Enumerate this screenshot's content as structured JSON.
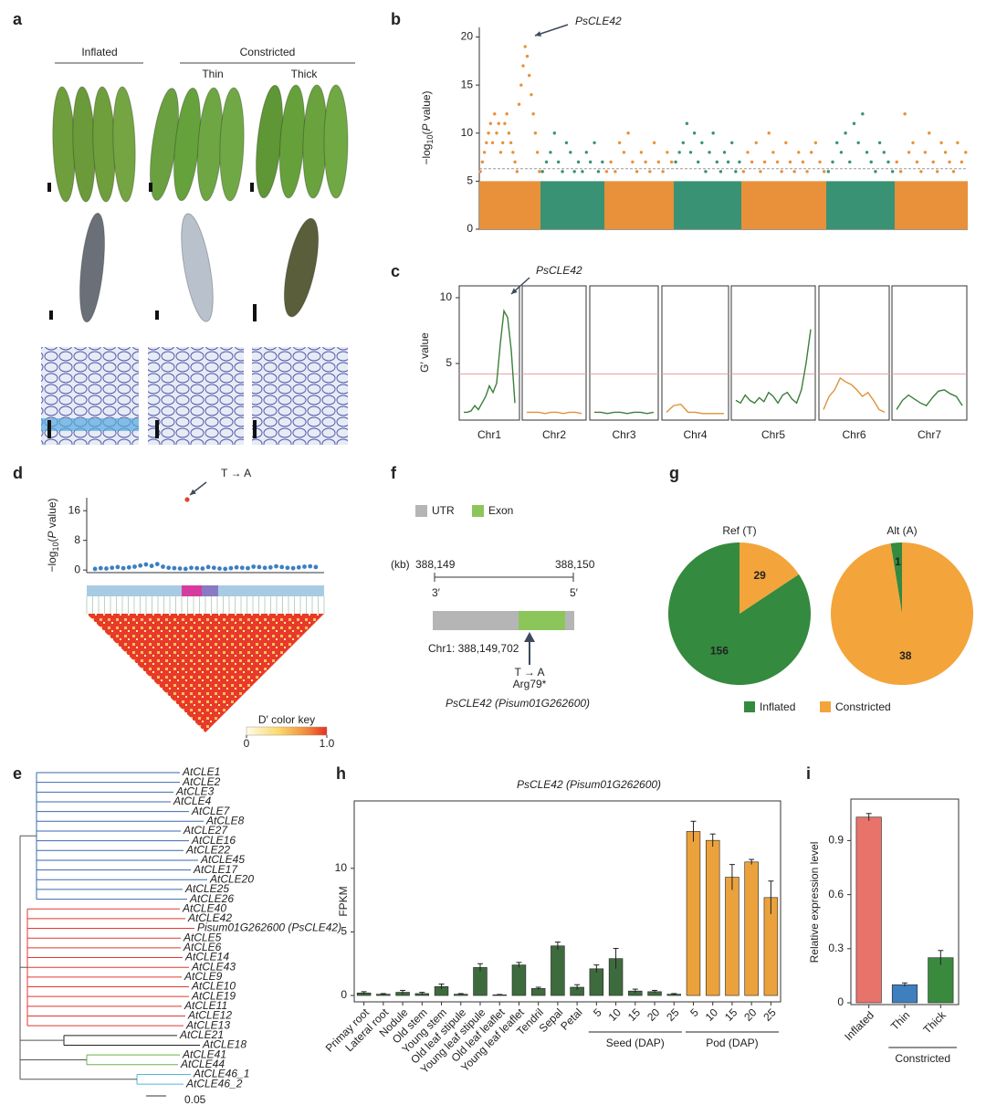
{
  "panel_letters": [
    "a",
    "b",
    "c",
    "d",
    "e",
    "f",
    "g",
    "h",
    "i"
  ],
  "panel_a": {
    "groups": [
      "Inflated",
      "Constricted"
    ],
    "subgroups": [
      "Thin",
      "Thick"
    ]
  },
  "panel_e": {
    "clades": [
      {
        "color": "#3a69b0",
        "leaves": [
          "AtCLE1",
          "AtCLE2",
          "AtCLE3",
          "AtCLE4",
          "AtCLE7",
          "AtCLE8",
          "AtCLE27",
          "AtCLE16",
          "AtCLE22",
          "AtCLE45",
          "AtCLE17",
          "AtCLE20",
          "AtCLE25",
          "AtCLE26"
        ]
      },
      {
        "color": "#e0392f",
        "leaves": [
          "AtCLE40",
          "AtCLE42",
          "Pisum01G262600 (PsCLE42)",
          "AtCLE5",
          "AtCLE6",
          "AtCLE14",
          "AtCLE43",
          "AtCLE9",
          "AtCLE10",
          "AtCLE19",
          "AtCLE11",
          "AtCLE12",
          "AtCLE13"
        ]
      },
      {
        "color": "#222222",
        "leaves": [
          "AtCLE21",
          "AtCLE18"
        ]
      },
      {
        "color": "#6db34a",
        "leaves": [
          "AtCLE41",
          "AtCLE44"
        ]
      },
      {
        "color": "#55b6d8",
        "leaves": [
          "AtCLE46_1",
          "AtCLE46_2"
        ]
      }
    ],
    "scale_label": "0.05"
  },
  "panel_f": {
    "legend": [
      {
        "label": "UTR",
        "color": "#b5b5b5"
      },
      {
        "label": "Exon",
        "color": "#8cc65a"
      }
    ],
    "unit": "(kb)",
    "positions": [
      "388,149",
      "388,150"
    ],
    "ends": [
      "3′",
      "5′"
    ],
    "snp": "Chr1: 388,149,702",
    "change": "T → A",
    "effect": "Arg79*",
    "gene": "PsCLE42 (Pisum01G262600)"
  },
  "chart_data": [
    {
      "type": "scatter",
      "ylabel": [
        "−log",
        "10",
        "(",
        "P",
        " value)"
      ],
      "ylim": [
        0,
        21
      ],
      "yticks": [
        0,
        5,
        10,
        15,
        20
      ],
      "threshold": 6.3,
      "dense_upper": 5,
      "annotation": "PsCLE42",
      "series": [
        {
          "color": "#e8913a",
          "values": [
            6,
            7,
            8,
            9,
            10,
            11,
            9,
            12,
            10,
            11,
            8,
            9,
            11,
            12,
            10,
            9,
            8,
            7,
            6,
            13,
            15,
            17,
            19,
            18,
            16,
            14,
            12,
            10,
            8,
            6
          ]
        },
        {
          "color": "#3a9274",
          "values": [
            6,
            7,
            8,
            10,
            7,
            6,
            9,
            8,
            6,
            7,
            6,
            8,
            7,
            9,
            6,
            7
          ]
        },
        {
          "color": "#e8913a",
          "values": [
            6,
            7,
            6,
            9,
            8,
            10,
            7,
            6,
            8,
            7,
            6,
            9,
            7,
            6,
            8,
            7
          ]
        },
        {
          "color": "#3a9274",
          "values": [
            7,
            8,
            9,
            11,
            8,
            10,
            7,
            9,
            6,
            8,
            10,
            7,
            6,
            8,
            7,
            9,
            6,
            7
          ]
        },
        {
          "color": "#e8913a",
          "values": [
            6,
            8,
            7,
            9,
            6,
            7,
            10,
            8,
            7,
            6,
            9,
            7,
            6,
            8,
            7,
            6,
            8,
            9,
            7,
            6
          ]
        },
        {
          "color": "#3a9274",
          "values": [
            6,
            7,
            9,
            8,
            10,
            7,
            11,
            9,
            12,
            8,
            7,
            6,
            9,
            8,
            7,
            6
          ]
        },
        {
          "color": "#e8913a",
          "values": [
            7,
            6,
            12,
            8,
            9,
            7,
            6,
            8,
            10,
            7,
            6,
            9,
            8,
            7,
            6,
            9,
            7,
            8
          ]
        }
      ]
    },
    {
      "type": "line",
      "ylabel": "G′ value",
      "ylim": [
        0.7,
        10.9
      ],
      "yticks": [
        5,
        10
      ],
      "threshold": 4.2,
      "annotation": "PsCLE42",
      "series": [
        {
          "name": "Chr1",
          "color": "#3b7f3b",
          "values": [
            1.3,
            1.3,
            1.4,
            1.8,
            1.5,
            2.0,
            2.5,
            3.3,
            2.8,
            3.5,
            6.5,
            9.0,
            8.5,
            6.0,
            2.0
          ]
        },
        {
          "name": "Chr2",
          "color": "#e0913a",
          "values": [
            1.3,
            1.3,
            1.3,
            1.2,
            1.3,
            1.3,
            1.2,
            1.3,
            1.3,
            1.2
          ]
        },
        {
          "name": "Chr3",
          "color": "#3b7f3b",
          "values": [
            1.3,
            1.3,
            1.2,
            1.3,
            1.3,
            1.2,
            1.3,
            1.3,
            1.2,
            1.3
          ]
        },
        {
          "name": "Chr4",
          "color": "#e0913a",
          "values": [
            1.3,
            1.8,
            1.9,
            1.3,
            1.3,
            1.2,
            1.2,
            1.2,
            1.2
          ]
        },
        {
          "name": "Chr5",
          "color": "#3b7f3b",
          "values": [
            2.2,
            2.0,
            2.6,
            2.2,
            2.0,
            2.4,
            2.1,
            2.8,
            2.5,
            2.0,
            2.6,
            2.8,
            2.3,
            2.0,
            3.0,
            5.0,
            7.6
          ]
        },
        {
          "name": "Chr6",
          "color": "#e0913a",
          "values": [
            1.5,
            2.5,
            3.0,
            3.9,
            3.6,
            3.4,
            3.0,
            2.5,
            2.8,
            2.2,
            1.5,
            1.3
          ]
        },
        {
          "name": "Chr7",
          "color": "#3b7f3b",
          "values": [
            1.5,
            2.2,
            2.6,
            2.3,
            2.0,
            1.8,
            2.4,
            2.9,
            3.0,
            2.7,
            2.5,
            1.8
          ]
        }
      ]
    },
    {
      "type": "scatter",
      "ylabel": [
        "−log",
        "10",
        "(",
        "P",
        " value)"
      ],
      "ylim": [
        -0.7,
        19.5
      ],
      "yticks": [
        0,
        8,
        16
      ],
      "annotation": "T → A",
      "color": "#3d7fc1",
      "values": [
        0.3,
        0.5,
        0.4,
        0.6,
        0.8,
        0.5,
        0.7,
        0.9,
        1.2,
        1.5,
        1.1,
        1.6,
        0.9,
        0.6,
        0.5,
        0.4,
        0.3,
        0.6,
        0.5,
        0.4,
        0.8,
        0.6,
        0.4,
        0.3,
        0.5,
        0.7,
        0.6,
        0.5,
        0.9,
        0.8,
        0.6,
        0.7,
        1.0,
        0.8,
        0.6,
        0.5,
        0.7,
        0.9,
        1.0,
        0.8
      ],
      "lead": {
        "value": 19,
        "color": "#d94a2b"
      },
      "color_key": {
        "title": "D′ color key",
        "ticks": [
          0,
          {
            "value": 1,
            "label": "1.0"
          }
        ]
      }
    },
    {
      "type": "pie",
      "title": "Ref (T)",
      "categories": [
        "Inflated",
        "Constricted"
      ],
      "values": [
        156,
        29
      ],
      "colors": [
        "#348a3f",
        "#f3a43b"
      ]
    },
    {
      "type": "pie",
      "title": "Alt (A)",
      "categories": [
        "Inflated",
        "Constricted"
      ],
      "values": [
        1,
        38
      ],
      "colors": [
        "#348a3f",
        "#f3a43b"
      ]
    },
    {
      "type": "bar",
      "title": "PsCLE42 (Pisum01G262600)",
      "ylabel": "FPKM",
      "ylim": [
        -0.5,
        15.3
      ],
      "yticks": [
        0,
        5,
        10
      ],
      "categories": [
        "Primay root",
        "Lateral root",
        "Nodule",
        "Old stem",
        "Young stem",
        "Old leaf stipule",
        "Young leaf stipule",
        "Old leaf leaflet",
        "Young leaf leaflet",
        "Tendril",
        "Sepal",
        "Petal",
        "5",
        "10",
        "15",
        "20",
        "25",
        "5",
        "10",
        "15",
        "20",
        "25"
      ],
      "values": [
        0.2,
        0.1,
        0.25,
        0.15,
        0.7,
        0.1,
        2.2,
        0.05,
        2.4,
        0.55,
        3.9,
        0.65,
        2.1,
        2.9,
        0.35,
        0.3,
        0.1,
        12.9,
        12.2,
        9.3,
        10.5,
        7.7
      ],
      "errors": [
        0.1,
        0.05,
        0.15,
        0.1,
        0.2,
        0.05,
        0.3,
        0.03,
        0.2,
        0.1,
        0.3,
        0.2,
        0.3,
        0.8,
        0.15,
        0.1,
        0.05,
        0.8,
        0.5,
        1.0,
        0.2,
        1.3
      ],
      "colors": [
        "#3e6b3e",
        "#3e6b3e",
        "#3e6b3e",
        "#3e6b3e",
        "#3e6b3e",
        "#3e6b3e",
        "#3e6b3e",
        "#3e6b3e",
        "#3e6b3e",
        "#3e6b3e",
        "#3e6b3e",
        "#3e6b3e",
        "#3e6b3e",
        "#3e6b3e",
        "#3e6b3e",
        "#3e6b3e",
        "#3e6b3e",
        "#eca23c",
        "#eca23c",
        "#eca23c",
        "#eca23c",
        "#eca23c"
      ],
      "groups": [
        "Seed (DAP)",
        "Pod (DAP)"
      ]
    },
    {
      "type": "bar",
      "ylabel": "Relative expression level",
      "ylim": [
        -0.01,
        1.13
      ],
      "yticks": [
        0,
        0.3,
        0.6,
        0.9
      ],
      "categories": [
        "Inflated",
        "Thin",
        "Thick"
      ],
      "values": [
        1.03,
        0.1,
        0.25
      ],
      "errors": [
        0.02,
        0.01,
        0.04
      ],
      "colors": [
        "#e8736b",
        "#3f7fc0",
        "#3a8a3e"
      ],
      "groups": [
        "Constricted"
      ]
    }
  ]
}
